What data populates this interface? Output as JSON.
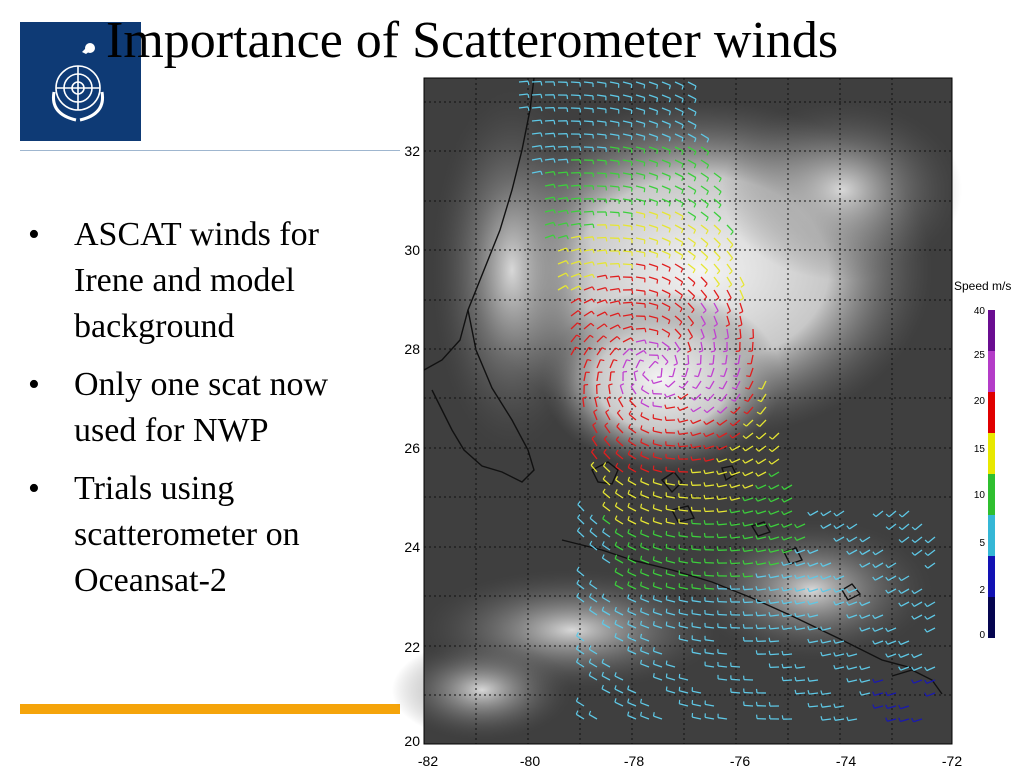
{
  "slide": {
    "title": "Importance of Scatterometer winds",
    "bullets": [
      "ASCAT winds for Irene and model background",
      "Only one scat now used for NWP",
      "Trials using scatterometer on Oceansat-2"
    ]
  },
  "logo": {
    "icon": "un-emblem-icon",
    "background": "#0e3a75"
  },
  "figure": {
    "x_ticks": [
      "-82",
      "-80",
      "-78",
      "-76",
      "-74",
      "-72"
    ],
    "y_ticks": [
      "32",
      "30",
      "28",
      "26",
      "24",
      "22",
      "20"
    ],
    "colorbar": {
      "label": "Speed m/s",
      "ticks": [
        "40",
        "25",
        "20",
        "15",
        "10",
        "5",
        "2",
        "0"
      ],
      "colors": [
        "#6a0d91",
        "#b43cc8",
        "#e00000",
        "#e8e800",
        "#2fbf2f",
        "#35b7d6",
        "#1212b4",
        "#050550"
      ]
    },
    "wind_colors": {
      "cyan": "#5ec8e6",
      "green": "#3ccf3c",
      "yellow": "#e6e632",
      "red": "#e01e1e",
      "purple": "#c040d0"
    }
  }
}
